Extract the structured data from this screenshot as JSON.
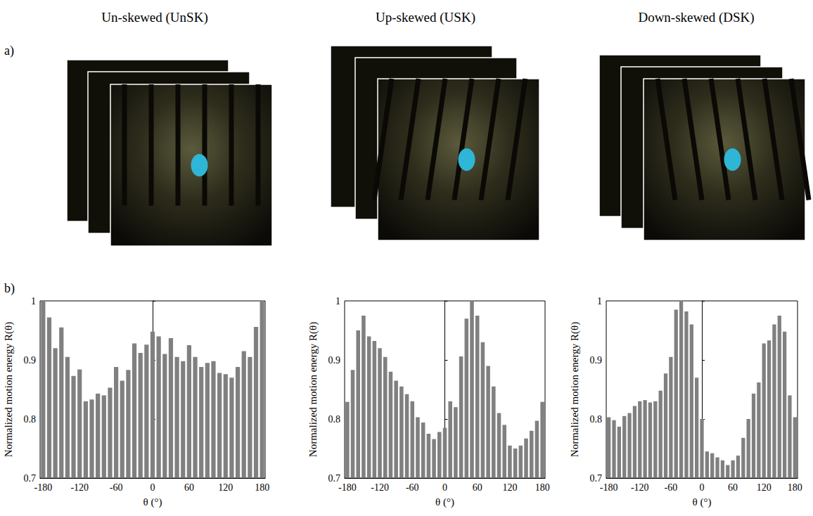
{
  "figure": {
    "panel_labels": [
      "a)",
      "b)"
    ]
  },
  "chart_data": [
    {
      "type": "bar",
      "title": "Un-skewed (UnSK)",
      "xlabel": "θ (°)",
      "ylabel": "Normalized motion energy R(θ)",
      "color": "#808080",
      "x": [
        -180,
        -170,
        -160,
        -150,
        -140,
        -130,
        -120,
        -110,
        -100,
        -90,
        -80,
        -70,
        -60,
        -50,
        -40,
        -30,
        -20,
        -10,
        0,
        10,
        20,
        30,
        40,
        50,
        60,
        70,
        80,
        90,
        100,
        110,
        120,
        130,
        140,
        150,
        160,
        170,
        180
      ],
      "values": [
        1.0,
        0.972,
        0.92,
        0.955,
        0.905,
        0.873,
        0.884,
        0.83,
        0.833,
        0.843,
        0.84,
        0.853,
        0.888,
        0.865,
        0.883,
        0.928,
        0.912,
        0.926,
        0.948,
        0.94,
        0.91,
        0.937,
        0.905,
        0.898,
        0.925,
        0.905,
        0.888,
        0.895,
        0.898,
        0.878,
        0.876,
        0.87,
        0.888,
        0.915,
        0.905,
        0.956,
        1.0
      ],
      "xlim": [
        -185,
        185
      ],
      "xticks": [
        -180,
        -120,
        -60,
        0,
        60,
        120,
        180
      ],
      "ylim": [
        0.7,
        1
      ],
      "yticks": [
        0.7,
        0.8,
        0.9,
        1
      ],
      "grid": false
    },
    {
      "type": "bar",
      "title": "Up-skewed (USK)",
      "xlabel": "θ (°)",
      "ylabel": "Normalized motion energy R(θ)",
      "color": "#808080",
      "x": [
        -180,
        -170,
        -160,
        -150,
        -140,
        -130,
        -120,
        -110,
        -100,
        -90,
        -80,
        -70,
        -60,
        -50,
        -40,
        -30,
        -20,
        -10,
        0,
        10,
        20,
        30,
        40,
        50,
        60,
        70,
        80,
        90,
        100,
        110,
        120,
        130,
        140,
        150,
        160,
        170,
        180
      ],
      "values": [
        0.829,
        0.883,
        0.95,
        0.975,
        0.94,
        0.932,
        0.92,
        0.905,
        0.88,
        0.865,
        0.855,
        0.842,
        0.83,
        0.803,
        0.794,
        0.775,
        0.766,
        0.778,
        0.785,
        0.83,
        0.82,
        0.906,
        0.97,
        1.0,
        0.975,
        0.93,
        0.89,
        0.855,
        0.81,
        0.79,
        0.755,
        0.75,
        0.755,
        0.767,
        0.78,
        0.797,
        0.829
      ],
      "xlim": [
        -185,
        185
      ],
      "xticks": [
        -180,
        -120,
        -60,
        0,
        60,
        120,
        180
      ],
      "ylim": [
        0.7,
        1
      ],
      "yticks": [
        0.7,
        0.8,
        0.9,
        1
      ],
      "grid": false
    },
    {
      "type": "bar",
      "title": "Down-skewed (DSK)",
      "xlabel": "θ (°)",
      "ylabel": "Normalized motion energy R(θ)",
      "color": "#808080",
      "x": [
        -180,
        -170,
        -160,
        -150,
        -140,
        -130,
        -120,
        -110,
        -100,
        -90,
        -80,
        -70,
        -60,
        -50,
        -40,
        -30,
        -20,
        -10,
        0,
        10,
        20,
        30,
        40,
        50,
        60,
        70,
        80,
        90,
        100,
        110,
        120,
        130,
        140,
        150,
        160,
        170,
        180
      ],
      "values": [
        0.803,
        0.798,
        0.787,
        0.805,
        0.81,
        0.822,
        0.83,
        0.832,
        0.828,
        0.83,
        0.848,
        0.877,
        0.905,
        0.985,
        1.0,
        0.982,
        0.96,
        0.87,
        0.8,
        0.745,
        0.742,
        0.735,
        0.73,
        0.722,
        0.73,
        0.738,
        0.768,
        0.8,
        0.843,
        0.862,
        0.928,
        0.933,
        0.96,
        0.975,
        0.948,
        0.84,
        0.803
      ],
      "xlim": [
        -185,
        185
      ],
      "xticks": [
        -180,
        -120,
        -60,
        0,
        60,
        120,
        180
      ],
      "ylim": [
        0.7,
        1
      ],
      "yticks": [
        0.7,
        0.8,
        0.9,
        1
      ],
      "grid": false
    }
  ]
}
